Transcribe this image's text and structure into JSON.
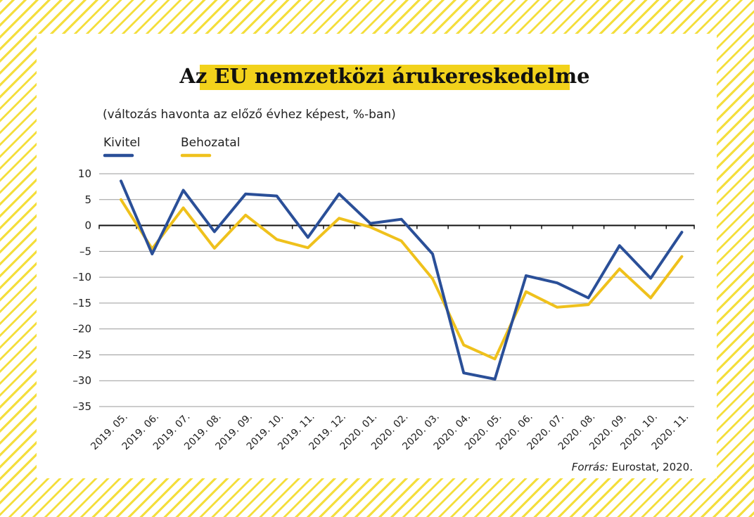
{
  "colors": {
    "kivitel": "#2a4f98",
    "behozatal": "#efc11c",
    "title_highlight": "#f2d21b",
    "stripe": "#f4de3c"
  },
  "chart_data": {
    "type": "line",
    "title": "Az EU nemzetközi árukereskedelme",
    "subtitle": "(változás havonta az előző évhez képest, %-ban)",
    "categories": [
      "2019. 05.",
      "2019. 06.",
      "2019. 07.",
      "2019. 08.",
      "2019. 09.",
      "2019. 10.",
      "2019. 11.",
      "2019. 12.",
      "2020. 01.",
      "2020. 02.",
      "2020. 03.",
      "2020. 04.",
      "2020. 05.",
      "2020. 06.",
      "2020. 07.",
      "2020. 08.",
      "2020. 09.",
      "2020. 10.",
      "2020. 11."
    ],
    "series": [
      {
        "name": "Kivitel",
        "values": [
          8.6,
          -5.5,
          6.8,
          -1.2,
          6.1,
          5.7,
          -2.3,
          6.1,
          0.4,
          1.2,
          -5.5,
          -28.5,
          -29.7,
          -9.7,
          -11.1,
          -14.0,
          -3.9,
          -10.2,
          -1.3
        ]
      },
      {
        "name": "Behozatal",
        "values": [
          5.0,
          -4.5,
          3.4,
          -4.4,
          2.0,
          -2.7,
          -4.3,
          1.4,
          -0.3,
          -3.0,
          -10.3,
          -23.1,
          -25.8,
          -12.8,
          -15.8,
          -15.3,
          -8.4,
          -14.0,
          -6.0
        ]
      }
    ],
    "ylim": [
      -35,
      10
    ],
    "yticks": [
      10,
      5,
      0,
      -5,
      -10,
      -15,
      -20,
      -25,
      -30,
      -35
    ],
    "ytick_labels": [
      "10",
      "5",
      "0",
      "–5",
      "–10",
      "–15",
      "–20",
      "–25",
      "–30",
      "–35"
    ],
    "grid": true,
    "legend_position": "top-left",
    "source_label": "Forrás:",
    "source_text": "Eurostat, 2020."
  }
}
